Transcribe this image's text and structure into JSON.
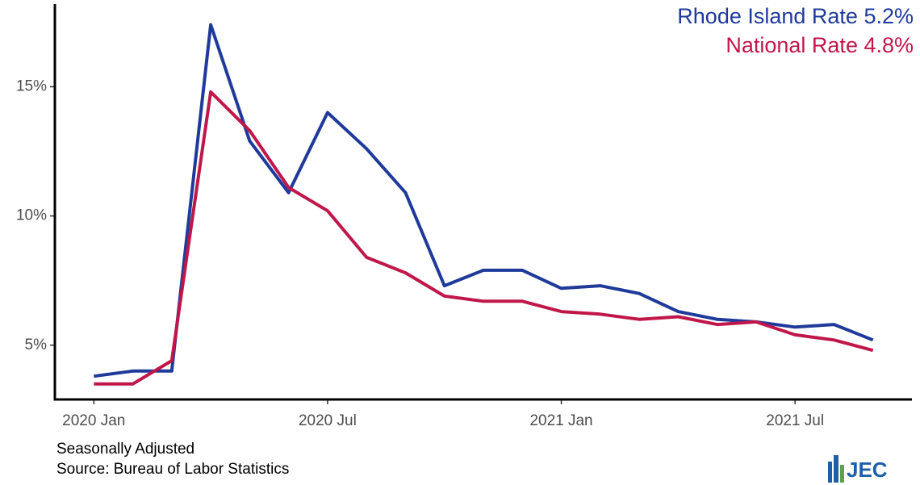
{
  "chart_data": {
    "type": "line",
    "x": [
      "2020-01",
      "2020-02",
      "2020-03",
      "2020-04",
      "2020-05",
      "2020-06",
      "2020-07",
      "2020-08",
      "2020-09",
      "2020-10",
      "2020-11",
      "2020-12",
      "2021-01",
      "2021-02",
      "2021-03",
      "2021-04",
      "2021-05",
      "2021-06",
      "2021-07",
      "2021-08",
      "2021-09"
    ],
    "series": [
      {
        "name": "Rhode Island Rate 5.2%",
        "color": "#1f3a9a",
        "values": [
          3.8,
          4.0,
          4.0,
          17.4,
          12.9,
          10.9,
          14.0,
          12.6,
          10.9,
          7.3,
          7.9,
          7.9,
          7.2,
          7.3,
          7.0,
          6.3,
          6.0,
          5.9,
          5.7,
          5.8,
          5.2
        ]
      },
      {
        "name": "National Rate 4.8%",
        "color": "#c0174a",
        "values": [
          3.5,
          3.5,
          4.4,
          14.8,
          13.3,
          11.1,
          10.2,
          8.4,
          7.8,
          6.9,
          6.7,
          6.7,
          6.3,
          6.2,
          6.0,
          6.1,
          5.8,
          5.9,
          5.4,
          5.2,
          4.8
        ]
      }
    ],
    "xlim": [
      "2019-12",
      "2021-10"
    ],
    "xticks": [
      {
        "value": "2020-01",
        "label": "2020 Jan"
      },
      {
        "value": "2020-07",
        "label": "2020 Jul"
      },
      {
        "value": "2021-01",
        "label": "2021 Jan"
      },
      {
        "value": "2021-07",
        "label": "2021 Jul"
      }
    ],
    "ylim": [
      2.9,
      18.2
    ],
    "yticks": [
      {
        "value": 5,
        "label": "5%"
      },
      {
        "value": 10,
        "label": "10%"
      },
      {
        "value": 15,
        "label": "15%"
      }
    ],
    "legend": "top-right",
    "notes": [
      "Seasonally Adjusted",
      "Source: Bureau of Labor Statistics"
    ],
    "logo_text": "JEC"
  }
}
